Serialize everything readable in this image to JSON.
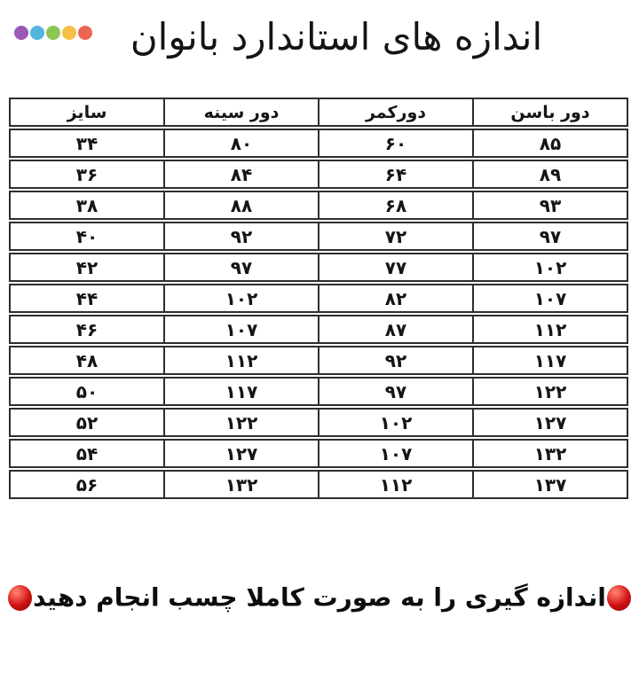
{
  "page": {
    "background": "#ffffff"
  },
  "header": {
    "title": "اندازه های استاندارد بانوان",
    "dots": [
      {
        "name": "purple-dot-icon",
        "color": "#9b59b6"
      },
      {
        "name": "blue-dot-icon",
        "color": "#52b3e0"
      },
      {
        "name": "green-dot-icon",
        "color": "#8bc651"
      },
      {
        "name": "yellow-dot-icon",
        "color": "#f6bf45"
      },
      {
        "name": "orange-dot-icon",
        "color": "#ec6552"
      }
    ]
  },
  "table": {
    "headers": [
      "سایز",
      "دور سینه",
      "دورکمر",
      "دور باسن"
    ],
    "rows": [
      [
        "۳۴",
        "۸۰",
        "۶۰",
        "۸۵"
      ],
      [
        "۳۶",
        "۸۴",
        "۶۴",
        "۸۹"
      ],
      [
        "۳۸",
        "۸۸",
        "۶۸",
        "۹۳"
      ],
      [
        "۴۰",
        "۹۲",
        "۷۲",
        "۹۷"
      ],
      [
        "۴۲",
        "۹۷",
        "۷۷",
        "۱۰۲"
      ],
      [
        "۴۴",
        "۱۰۲",
        "۸۲",
        "۱۰۷"
      ],
      [
        "۴۶",
        "۱۰۷",
        "۸۷",
        "۱۱۲"
      ],
      [
        "۴۸",
        "۱۱۲",
        "۹۲",
        "۱۱۷"
      ],
      [
        "۵۰",
        "۱۱۷",
        "۹۷",
        "۱۲۲"
      ],
      [
        "۵۲",
        "۱۲۲",
        "۱۰۲",
        "۱۲۷"
      ],
      [
        "۵۴",
        "۱۲۷",
        "۱۰۷",
        "۱۳۲"
      ],
      [
        "۵۶",
        "۱۳۲",
        "۱۱۲",
        "۱۳۷"
      ]
    ],
    "border_color": "#2e2e2e"
  },
  "footer": {
    "note": "اندازه گیری را به صورت کاملا چسب انجام دهید",
    "bullet_color": "#cf1212"
  },
  "chart_data": {
    "type": "table",
    "title": "اندازه های استاندارد بانوان",
    "columns": [
      "سایز",
      "دور سینه",
      "دورکمر",
      "دور باسن"
    ],
    "rows": [
      [
        34,
        80,
        60,
        85
      ],
      [
        36,
        84,
        64,
        89
      ],
      [
        38,
        88,
        68,
        93
      ],
      [
        40,
        92,
        72,
        97
      ],
      [
        42,
        97,
        77,
        102
      ],
      [
        44,
        102,
        82,
        107
      ],
      [
        46,
        107,
        87,
        112
      ],
      [
        48,
        112,
        92,
        117
      ],
      [
        50,
        117,
        97,
        122
      ],
      [
        52,
        122,
        102,
        127
      ],
      [
        54,
        127,
        107,
        132
      ],
      [
        56,
        132,
        112,
        137
      ]
    ],
    "note": "اندازه گیری را به صورت کاملا چسب انجام دهید"
  }
}
